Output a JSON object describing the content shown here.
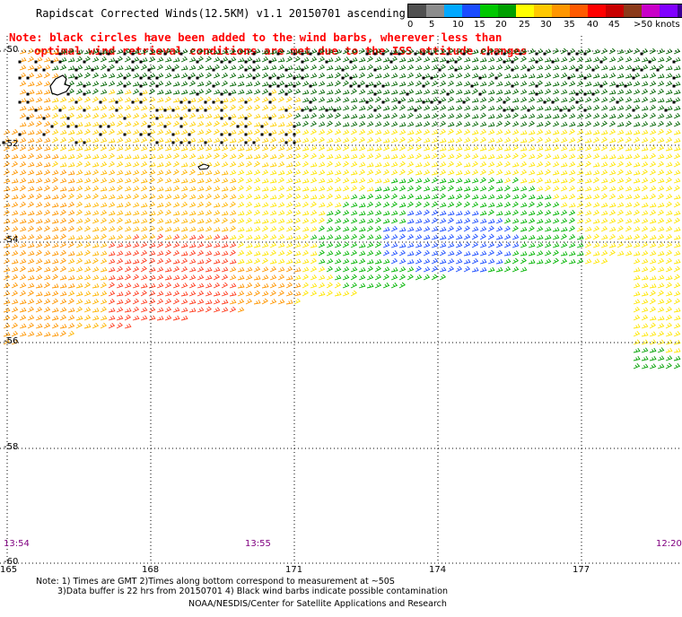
{
  "title": "Rapidscat Corrected Winds(12.5KM) v1.1 20150701 ascending",
  "note_line1": "Note: black circles have been added to the wind barbs, wherever less than",
  "note_line2": "optimal wind retrieval conditions are met due to the ISS attitude changes",
  "legend": {
    "colors": [
      "#505050",
      "#8c8c8c",
      "#00a8ff",
      "#1a4cff",
      "#00c800",
      "#00a000",
      "#ffff00",
      "#ffc800",
      "#ff9600",
      "#ff5a00",
      "#ff0000",
      "#c80000",
      "#8b3a1a",
      "#c800c8",
      "#8000ff",
      "#3c0096"
    ],
    "labels": [
      "0",
      "5",
      "10",
      "15",
      "20",
      "25",
      "30",
      "35",
      "40",
      "45",
      ">50 knots"
    ]
  },
  "lat_labels": [
    "-50",
    "-52",
    "-54",
    "-56",
    "-58",
    "-60"
  ],
  "lon_labels": [
    "165",
    "168",
    "171",
    "174",
    "177"
  ],
  "time_labels": [
    "13:54",
    "13:55",
    "12:20"
  ],
  "footer": {
    "line1": "Note: 1) Times are GMT 2)Times along bottom correspond to measurement at ~50S",
    "line2": "3)Data buffer is 22 hrs from 20150701 4) Black wind barbs indicate possible contamination",
    "credit": "NOAA/NESDIS/Center for Satellite Applications and Research"
  }
}
